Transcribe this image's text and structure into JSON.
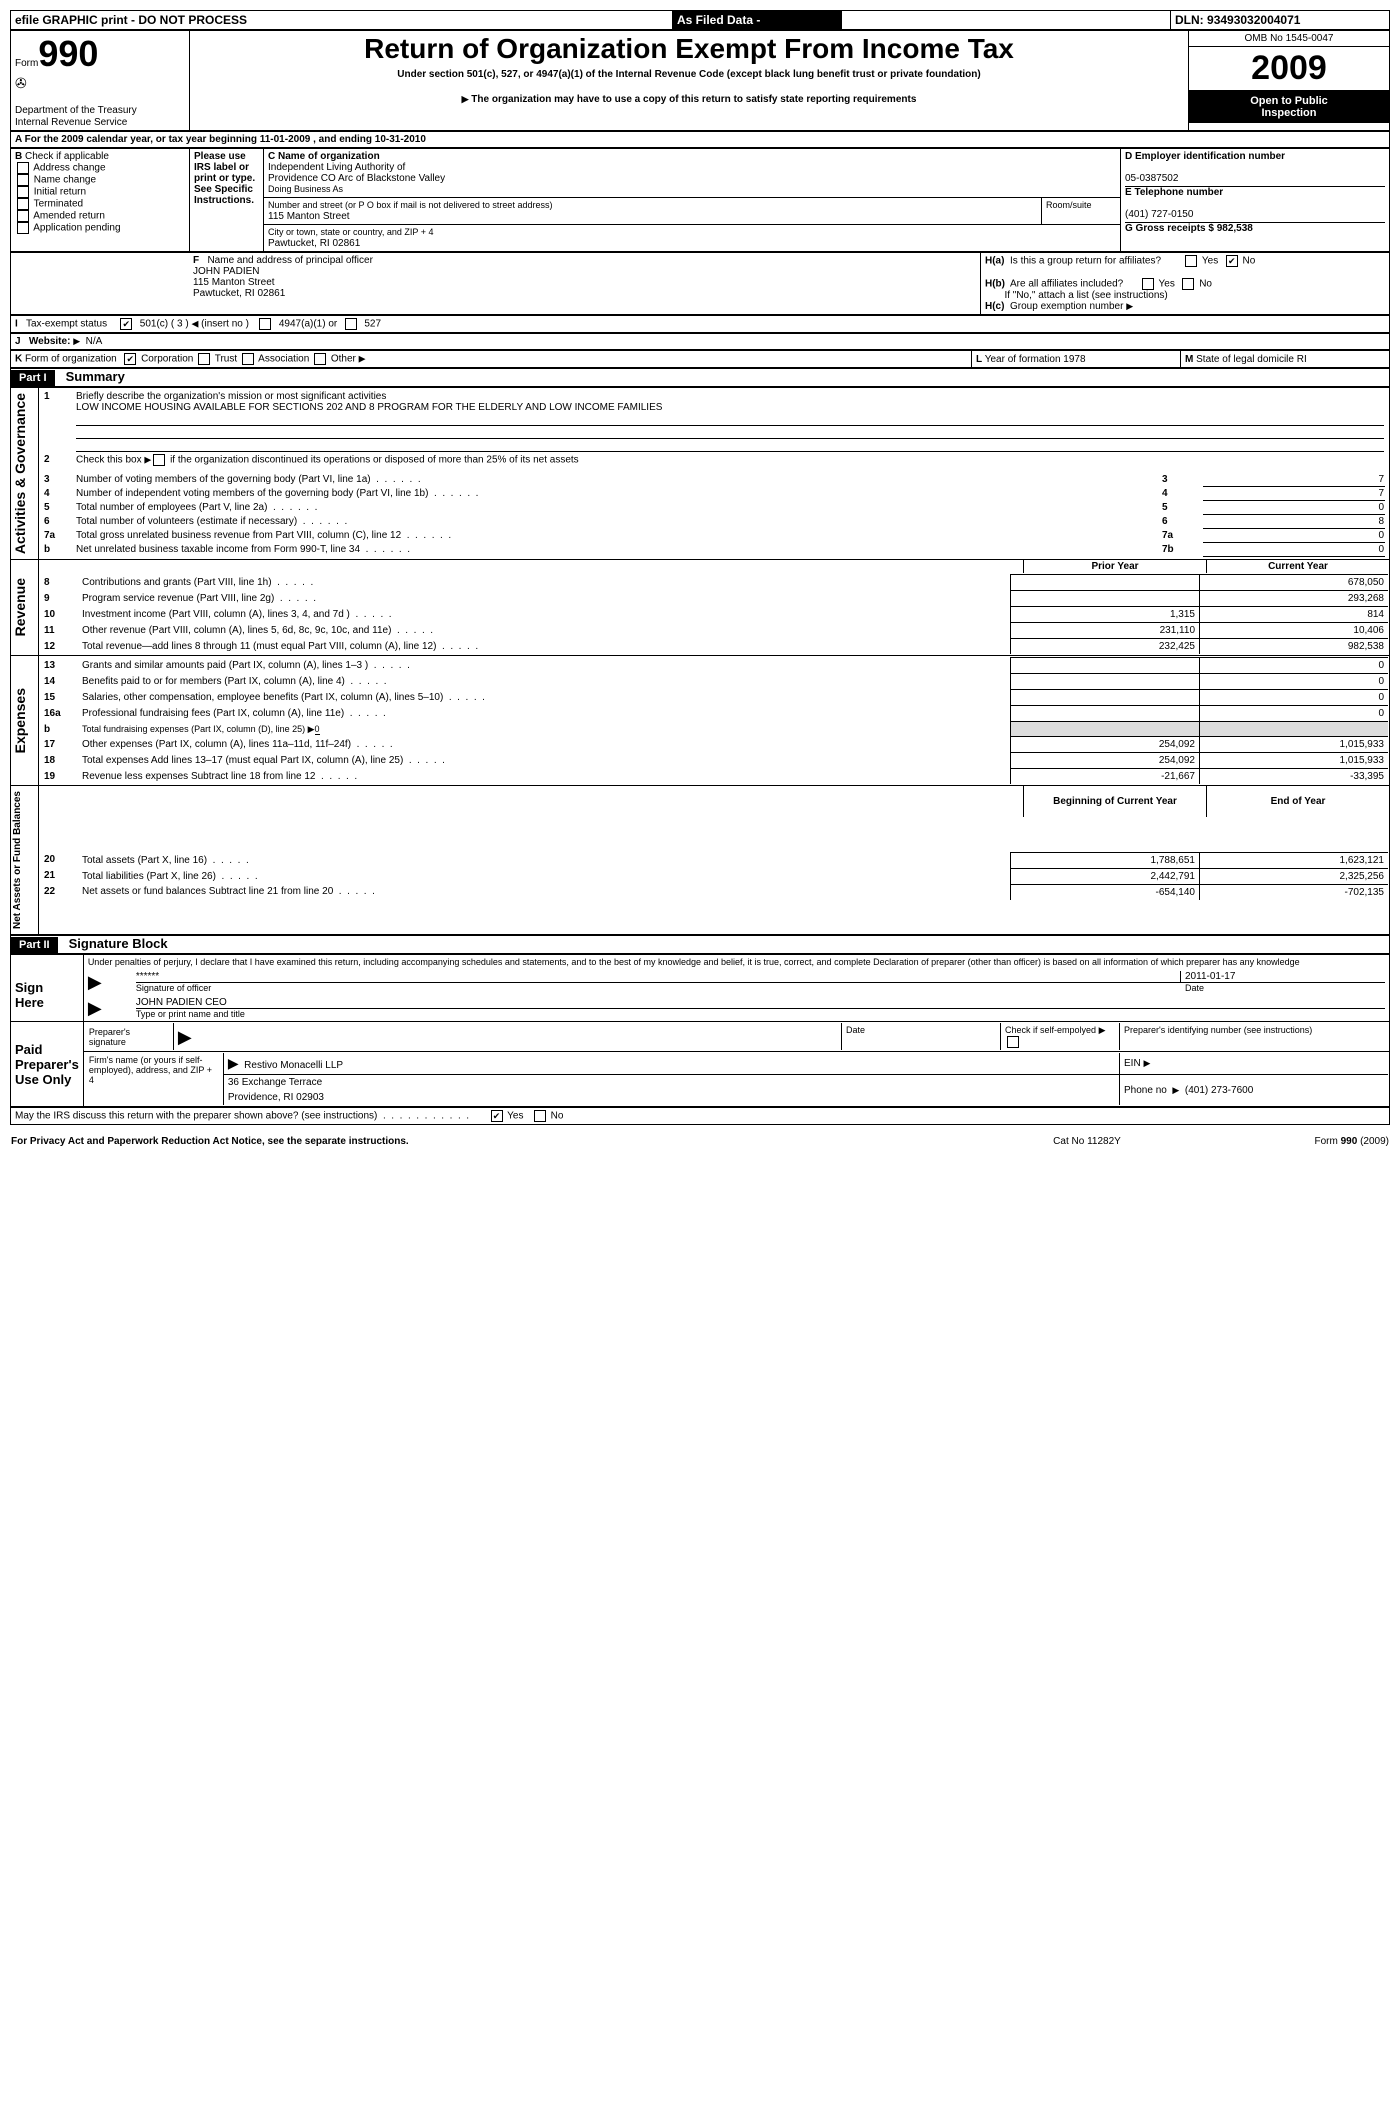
{
  "top_bar": {
    "efile": "efile GRAPHIC print - DO NOT PROCESS",
    "as_filed": "As Filed Data -",
    "dln_label": "DLN:",
    "dln": "93493032004071"
  },
  "header": {
    "form_word": "Form",
    "form_num": "990",
    "dept1": "Department of the Treasury",
    "dept2": "Internal Revenue Service",
    "title": "Return of Organization Exempt From Income Tax",
    "subtitle": "Under section 501(c), 527, or 4947(a)(1) of the Internal Revenue Code (except black lung benefit trust or private foundation)",
    "note": "The organization may have to use a copy of this return to satisfy state reporting requirements",
    "omb": "OMB No 1545-0047",
    "year": "2009",
    "inspection1": "Open to Public",
    "inspection2": "Inspection"
  },
  "section_a": {
    "label": "A  For the 2009 calendar year, or tax year beginning 11-01-2009",
    "ending": ", and ending 10-31-2010"
  },
  "section_b": {
    "title": "B",
    "check_label": "Check if applicable",
    "addr_change": "Address change",
    "name_change": "Name change",
    "initial": "Initial return",
    "terminated": "Terminated",
    "amended": "Amended return",
    "app_pending": "Application pending",
    "please_use": "Please use IRS label or print or type. See Specific Instructions."
  },
  "section_c": {
    "label": "C Name of organization",
    "name1": "Independent Living Authority of",
    "name2": "Providence CO Arc of Blackstone Valley",
    "dba_label": "Doing Business As",
    "addr_label": "Number and street (or P O  box if mail is not delivered to street address)",
    "room_label": "Room/suite",
    "addr": "115 Manton Street",
    "city_label": "City or town, state or country, and ZIP + 4",
    "city": "Pawtucket, RI  02861"
  },
  "section_d": {
    "label": "D Employer identification number",
    "ein": "05-0387502",
    "e_label": "E Telephone number",
    "phone": "(401) 727-0150",
    "g_label": "G Gross receipts $ 982,538"
  },
  "section_f": {
    "label": "F",
    "text": "Name and address of principal officer",
    "name": "JOHN PADIEN",
    "addr": "115 Manton Street",
    "city": "Pawtucket, RI  02861"
  },
  "section_h": {
    "ha_label": "H(a)",
    "ha_text": "Is this a group return for affiliates?",
    "yes": "Yes",
    "no": "No",
    "hb_label": "H(b)",
    "hb_text": "Are all affiliates included?",
    "hb_note": "If \"No,\" attach a list  (see instructions)",
    "hc_label": "H(c)",
    "hc_text": "Group exemption number"
  },
  "section_i": {
    "label": "I",
    "text": "Tax-exempt status",
    "c501": "501(c) ( 3 )",
    "insert": "(insert no )",
    "c4947": "4947(a)(1) or",
    "c527": "527"
  },
  "section_j": {
    "label": "J",
    "text": "Website:",
    "val": "N/A"
  },
  "section_k": {
    "label": "K",
    "text": "Form of organization",
    "corp": "Corporation",
    "trust": "Trust",
    "assoc": "Association",
    "other": "Other",
    "l_label": "L",
    "l_text": "Year of formation  1978",
    "m_label": "M",
    "m_text": "State of legal domicile  RI"
  },
  "part1": {
    "label": "Part I",
    "title": "Summary",
    "q1_num": "1",
    "q1": "Briefly describe the organization's mission or most significant activities",
    "q1_val": "LOW INCOME HOUSING AVAILABLE FOR SECTIONS 202 AND 8 PROGRAM FOR THE ELDERLY AND LOW INCOME FAMILIES",
    "q2_num": "2",
    "q2": "Check this box",
    "q2b": "if the organization discontinued its operations or disposed of more than 25% of its net assets",
    "rows": [
      {
        "n": "3",
        "t": "Number of voting members of the governing body (Part VI, line 1a)",
        "k": "3",
        "v": "7"
      },
      {
        "n": "4",
        "t": "Number of independent voting members of the governing body (Part VI, line 1b)",
        "k": "4",
        "v": "7"
      },
      {
        "n": "5",
        "t": "Total number of employees (Part V, line 2a)",
        "k": "5",
        "v": "0"
      },
      {
        "n": "6",
        "t": "Total number of volunteers (estimate if necessary)",
        "k": "6",
        "v": "8"
      },
      {
        "n": "7a",
        "t": "Total gross unrelated business revenue from Part VIII, column (C), line 12",
        "k": "7a",
        "v": "0"
      },
      {
        "n": "b",
        "t": "Net unrelated business taxable income from Form 990-T, line 34",
        "k": "7b",
        "v": "0"
      }
    ],
    "side_ag": "Activities & Governance",
    "side_rev": "Revenue",
    "side_exp": "Expenses",
    "side_net": "Net Assets or Fund Balances",
    "prior_year": "Prior Year",
    "current_year": "Current Year",
    "rev_rows": [
      {
        "n": "8",
        "t": "Contributions and grants (Part VIII, line 1h)",
        "p": "",
        "c": "678,050"
      },
      {
        "n": "9",
        "t": "Program service revenue (Part VIII, line 2g)",
        "p": "",
        "c": "293,268"
      },
      {
        "n": "10",
        "t": "Investment income (Part VIII, column (A), lines 3, 4, and 7d )",
        "p": "1,315",
        "c": "814"
      },
      {
        "n": "11",
        "t": "Other revenue (Part VIII, column (A), lines 5, 6d, 8c, 9c, 10c, and 11e)",
        "p": "231,110",
        "c": "10,406"
      },
      {
        "n": "12",
        "t": "Total revenue—add lines 8 through 11 (must equal Part VIII, column (A), line 12)",
        "p": "232,425",
        "c": "982,538"
      }
    ],
    "exp_rows": [
      {
        "n": "13",
        "t": "Grants and similar amounts paid (Part IX, column (A), lines 1–3 )",
        "p": "",
        "c": "0"
      },
      {
        "n": "14",
        "t": "Benefits paid to or for members (Part IX, column (A), line 4)",
        "p": "",
        "c": "0"
      },
      {
        "n": "15",
        "t": "Salaries, other compensation, employee benefits (Part IX, column (A), lines 5–10)",
        "p": "",
        "c": "0"
      },
      {
        "n": "16a",
        "t": "Professional fundraising fees (Part IX, column (A), line 11e)",
        "p": "",
        "c": "0"
      },
      {
        "n": "b",
        "t": "Total fundraising expenses (Part IX, column (D), line 25) ▶",
        "p": "",
        "c": "",
        "sub": "0"
      },
      {
        "n": "17",
        "t": "Other expenses (Part IX, column (A), lines 11a–11d, 11f–24f)",
        "p": "254,092",
        "c": "1,015,933"
      },
      {
        "n": "18",
        "t": "Total expenses  Add lines 13–17 (must equal Part IX, column (A), line 25)",
        "p": "254,092",
        "c": "1,015,933"
      },
      {
        "n": "19",
        "t": "Revenue less expenses  Subtract line 18 from line 12",
        "p": "-21,667",
        "c": "-33,395"
      }
    ],
    "boy": "Beginning of Current Year",
    "eoy": "End of Year",
    "net_rows": [
      {
        "n": "20",
        "t": "Total assets (Part X, line 16)",
        "p": "1,788,651",
        "c": "1,623,121"
      },
      {
        "n": "21",
        "t": "Total liabilities (Part X, line 26)",
        "p": "2,442,791",
        "c": "2,325,256"
      },
      {
        "n": "22",
        "t": "Net assets or fund balances  Subtract line 21 from line 20",
        "p": "-654,140",
        "c": "-702,135"
      }
    ]
  },
  "part2": {
    "label": "Part II",
    "title": "Signature Block",
    "perjury": "Under penalties of perjury, I declare that I have examined this return, including accompanying schedules and statements, and to the best of my knowledge and belief, it is true, correct, and complete  Declaration of preparer (other than officer) is based on all information of which preparer has any knowledge",
    "sign_here": "Sign Here",
    "sig_stars": "******",
    "sig_date": "2011-01-17",
    "sig_officer": "Signature of officer",
    "date": "Date",
    "officer_name": "JOHN PADIEN CEO",
    "type_name": "Type or print name and title",
    "paid": "Paid Preparer's Use Only",
    "prep_sig": "Preparer's signature",
    "check_self": "Check if self-empolyed",
    "prep_id": "Preparer's identifying number (see instructions)",
    "firm_label": "Firm's name (or yours if self-employed), address, and ZIP + 4",
    "firm_name": "Restivo Monacelli LLP",
    "firm_addr": "36 Exchange Terrace",
    "firm_city": "Providence, RI  02903",
    "ein_label": "EIN",
    "phone_label": "Phone no",
    "phone": "(401) 273-7600",
    "may_irs": "May the IRS discuss this return with the preparer shown above? (see instructions)"
  },
  "footer": {
    "privacy": "For Privacy Act and Paperwork Reduction Act Notice, see the separate instructions.",
    "cat": "Cat No 11282Y",
    "form": "Form 990 (2009)"
  }
}
